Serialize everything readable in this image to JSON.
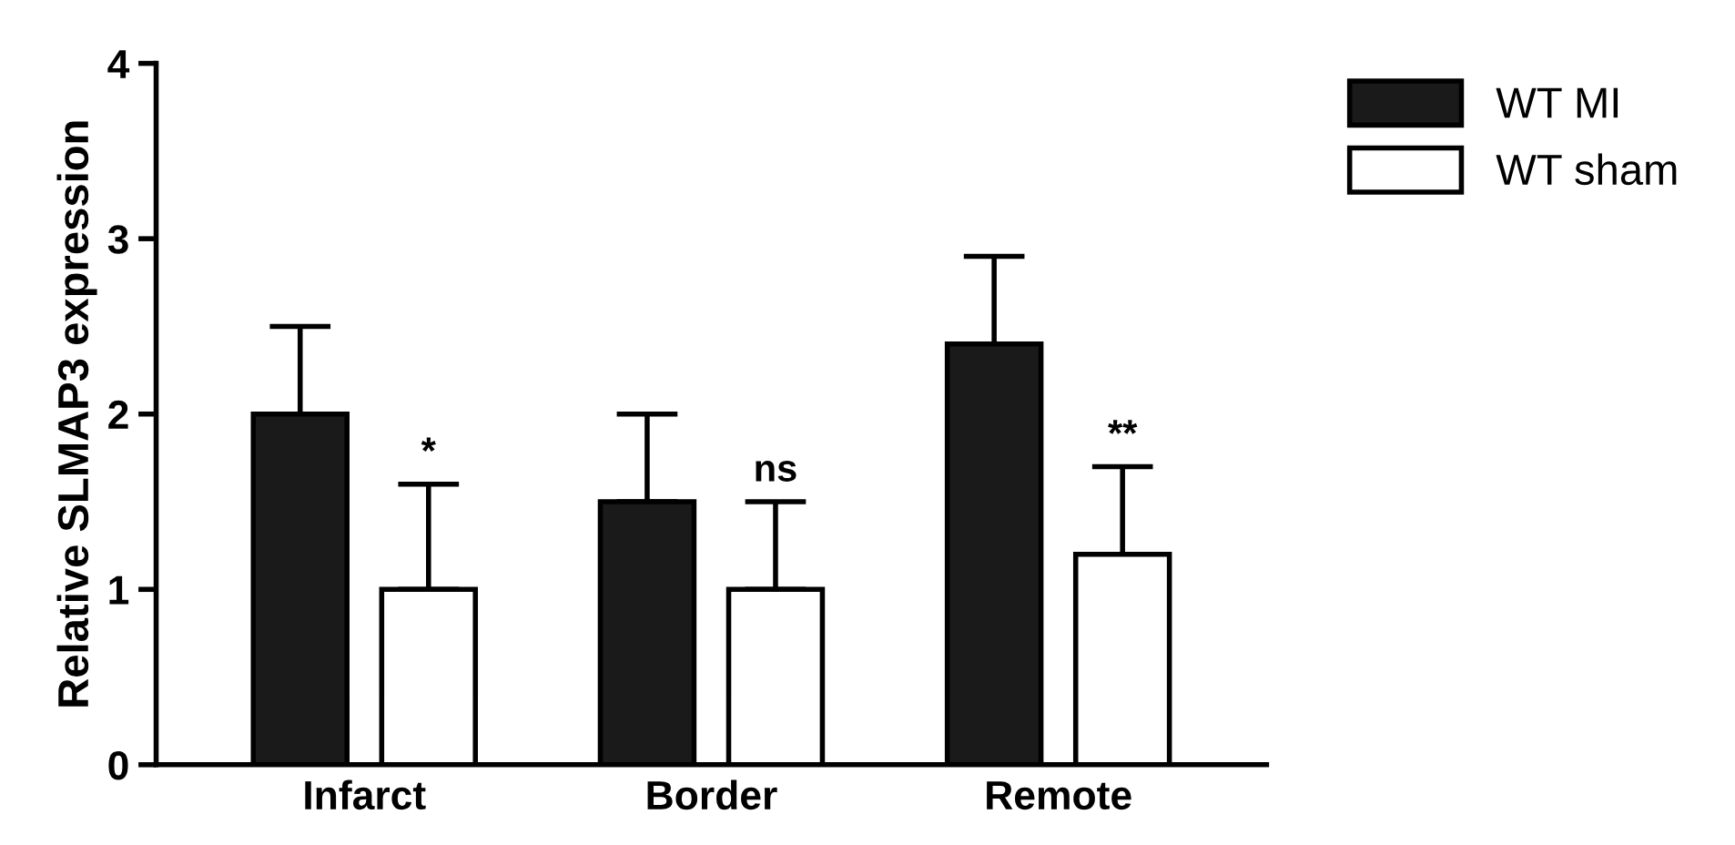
{
  "chart_data": {
    "type": "bar",
    "ylabel": "Relative SLMAP3 expression",
    "categories": [
      "Infarct",
      "Border",
      "Remote"
    ],
    "series": [
      {
        "name": "WT MI",
        "color": "#1a1a1a",
        "values": [
          2.0,
          1.5,
          2.4
        ],
        "errors": [
          [
            2.0,
            2.5
          ],
          [
            1.5,
            2.0
          ],
          [
            2.4,
            2.9
          ]
        ]
      },
      {
        "name": "WT sham",
        "color": "#ffffff",
        "values": [
          1.0,
          1.0,
          1.2
        ],
        "errors": [
          [
            1.0,
            1.6
          ],
          [
            1.0,
            1.5
          ],
          [
            1.2,
            1.7
          ]
        ]
      }
    ],
    "annotations": [
      "*",
      "ns",
      "**"
    ],
    "ylim": [
      0,
      4
    ],
    "yticks": [
      0,
      1,
      2,
      3,
      4
    ],
    "grid": false,
    "legend": "top right"
  }
}
